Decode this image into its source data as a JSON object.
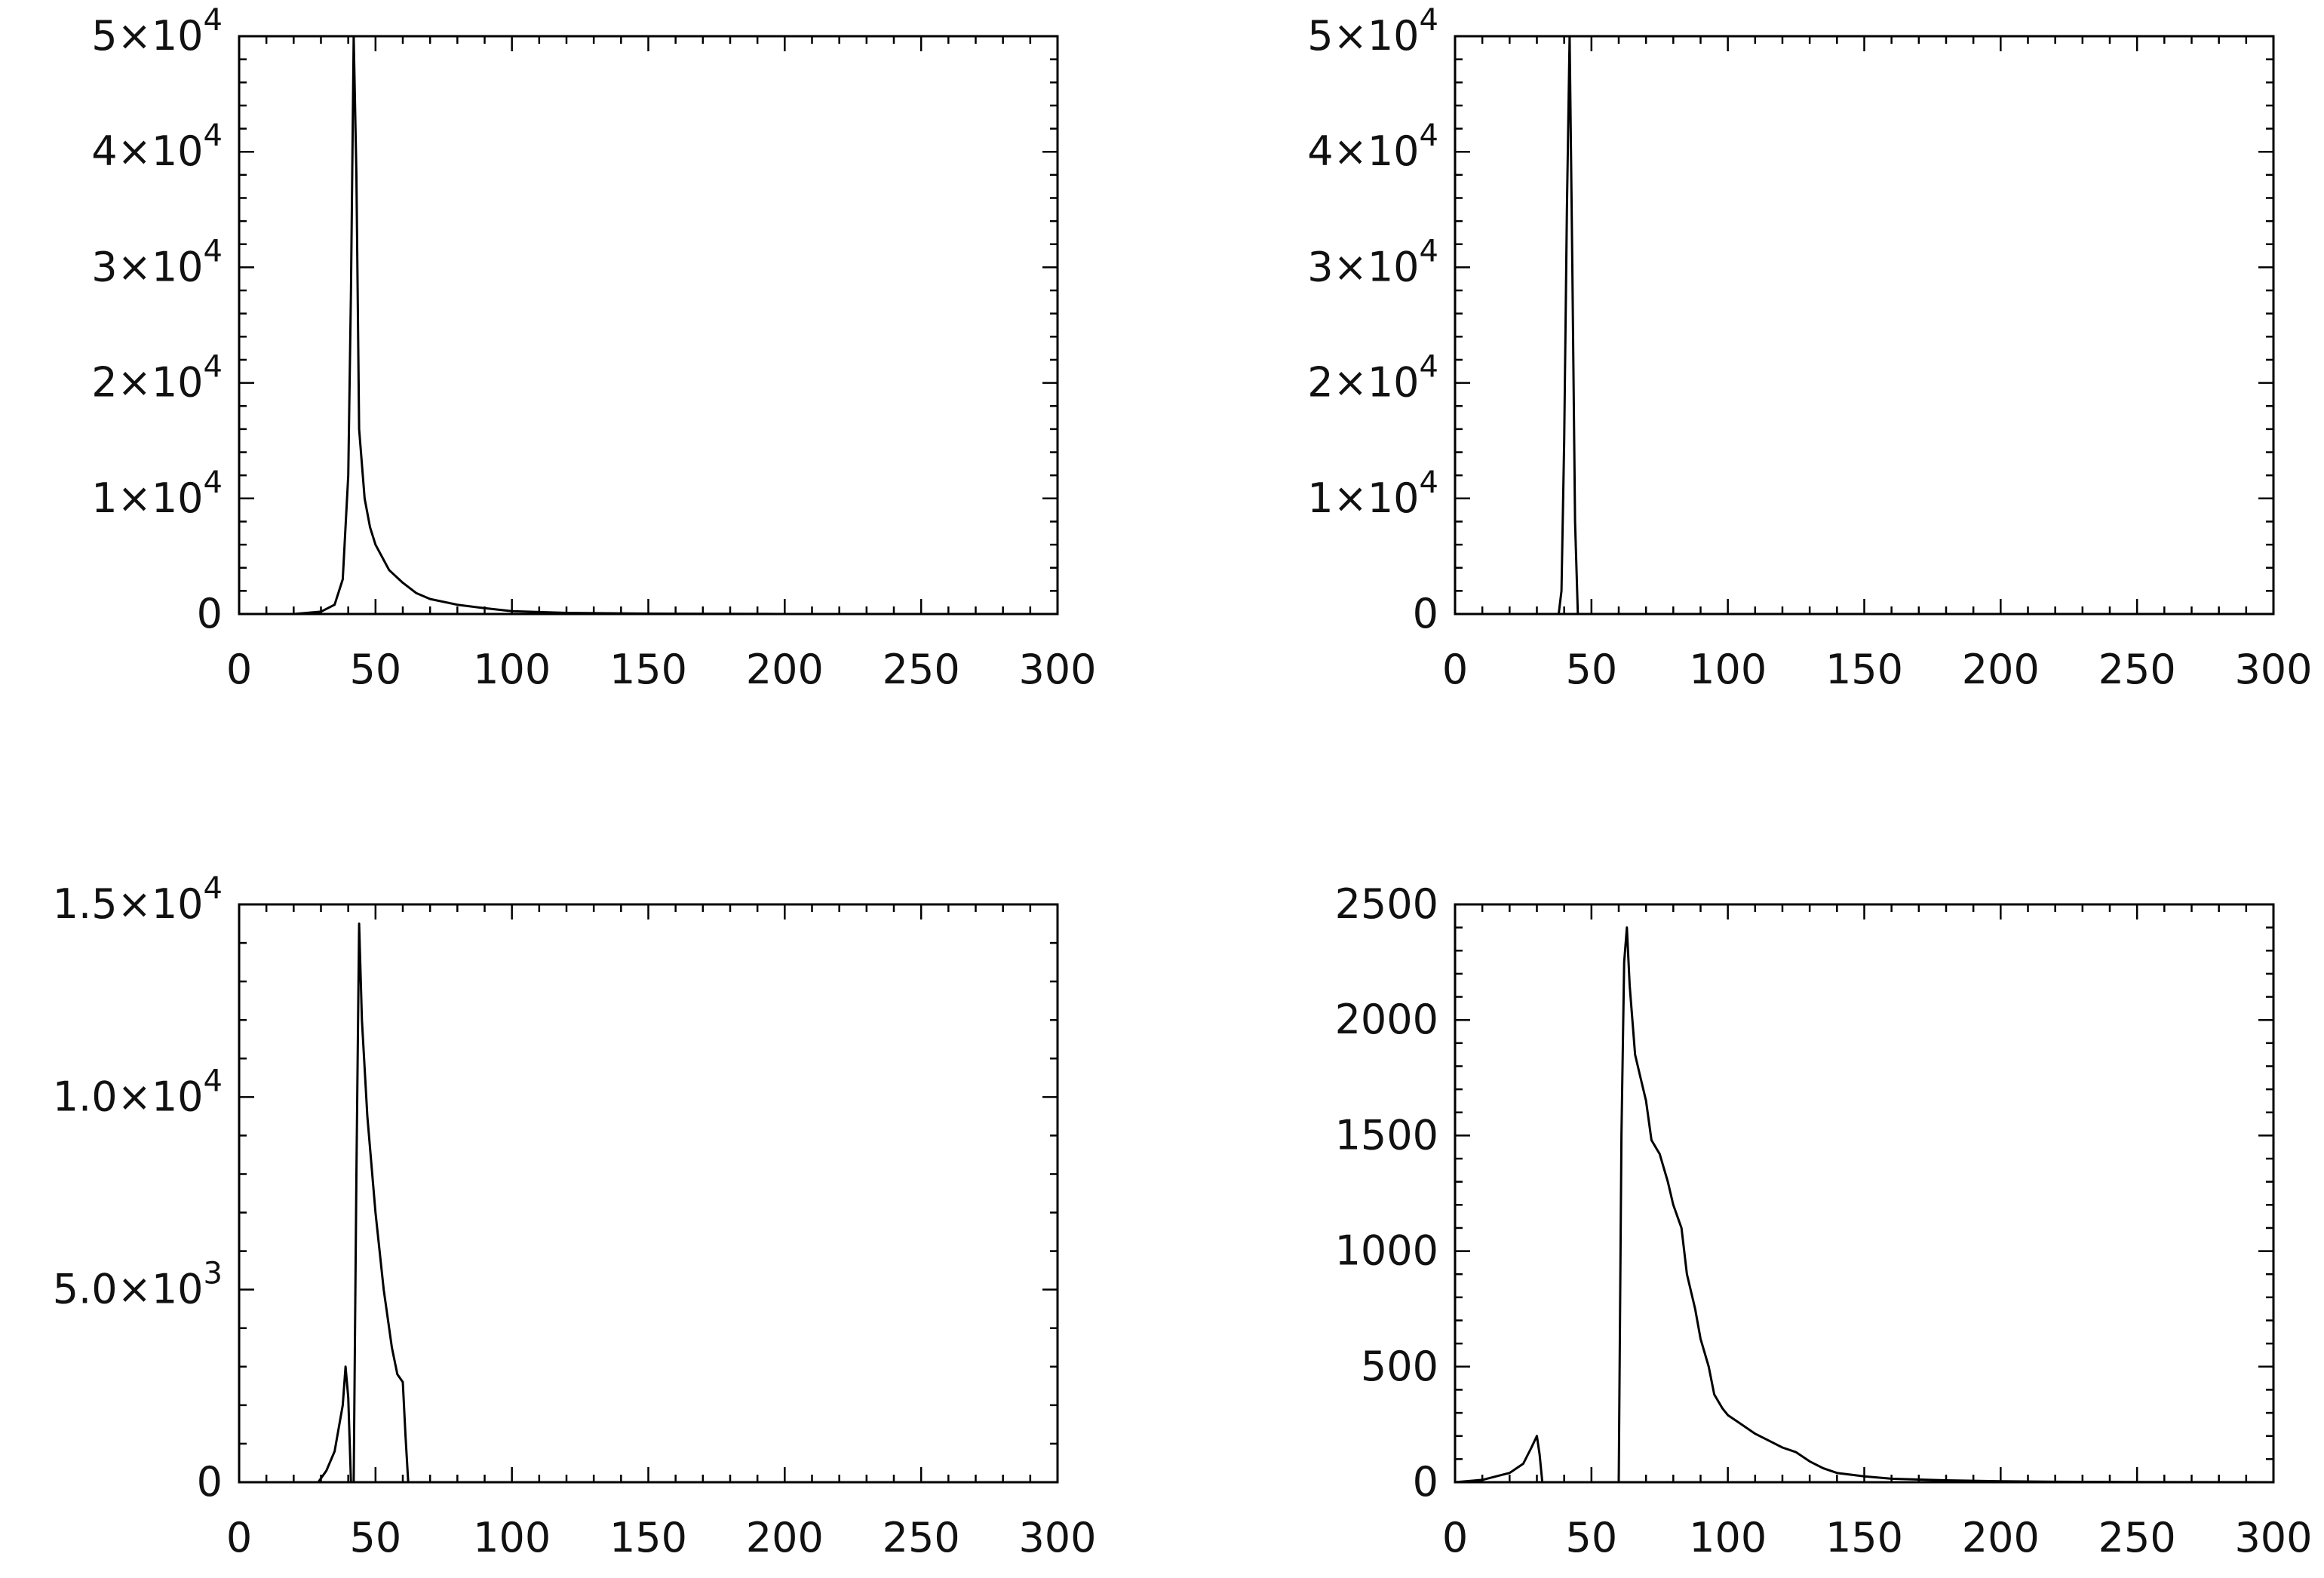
{
  "chart_data": [
    {
      "type": "line",
      "panel": "top-left",
      "xlabel": "",
      "ylabel": "",
      "xlim": [
        0,
        300
      ],
      "ylim": [
        0,
        50000
      ],
      "grid": false,
      "x_ticks": [
        {
          "value": 0,
          "label": "0"
        },
        {
          "value": 50,
          "label": "50"
        },
        {
          "value": 100,
          "label": "100"
        },
        {
          "value": 150,
          "label": "150"
        },
        {
          "value": 200,
          "label": "200"
        },
        {
          "value": 250,
          "label": "250"
        },
        {
          "value": 300,
          "label": "300"
        }
      ],
      "y_ticks": [
        {
          "value": 0,
          "mantissa": "0",
          "exponent": ""
        },
        {
          "value": 10000,
          "mantissa": "1×10",
          "exponent": "4"
        },
        {
          "value": 20000,
          "mantissa": "2×10",
          "exponent": "4"
        },
        {
          "value": 30000,
          "mantissa": "3×10",
          "exponent": "4"
        },
        {
          "value": 40000,
          "mantissa": "4×10",
          "exponent": "4"
        },
        {
          "value": 50000,
          "mantissa": "5×10",
          "exponent": "4"
        }
      ],
      "series": [
        {
          "x": [
            0,
            20,
            30,
            35,
            38,
            40,
            41,
            42,
            43,
            44,
            46,
            48,
            50,
            55,
            60,
            65,
            70,
            80,
            90,
            100,
            120,
            150,
            200,
            300
          ],
          "y": [
            0,
            0,
            200,
            800,
            3000,
            12000,
            28000,
            50000,
            38000,
            16000,
            10000,
            7500,
            6000,
            3800,
            2700,
            1800,
            1300,
            800,
            500,
            250,
            100,
            30,
            0,
            0
          ]
        }
      ]
    },
    {
      "type": "line",
      "panel": "top-right",
      "xlabel": "",
      "ylabel": "",
      "xlim": [
        0,
        300
      ],
      "ylim": [
        0,
        50000
      ],
      "grid": false,
      "x_ticks": [
        {
          "value": 0,
          "label": "0"
        },
        {
          "value": 50,
          "label": "50"
        },
        {
          "value": 100,
          "label": "100"
        },
        {
          "value": 150,
          "label": "150"
        },
        {
          "value": 200,
          "label": "200"
        },
        {
          "value": 250,
          "label": "250"
        },
        {
          "value": 300,
          "label": "300"
        }
      ],
      "y_ticks": [
        {
          "value": 0,
          "mantissa": "0",
          "exponent": ""
        },
        {
          "value": 10000,
          "mantissa": "1×10",
          "exponent": "4"
        },
        {
          "value": 20000,
          "mantissa": "2×10",
          "exponent": "4"
        },
        {
          "value": 30000,
          "mantissa": "3×10",
          "exponent": "4"
        },
        {
          "value": 40000,
          "mantissa": "4×10",
          "exponent": "4"
        },
        {
          "value": 50000,
          "mantissa": "5×10",
          "exponent": "4"
        }
      ],
      "series": [
        {
          "x": [
            0,
            38,
            39,
            40,
            41,
            42,
            43,
            44,
            45,
            300
          ],
          "y": [
            0,
            0,
            2000,
            15000,
            35000,
            50000,
            30000,
            8000,
            0,
            0
          ]
        }
      ]
    },
    {
      "type": "line",
      "panel": "bottom-left",
      "xlabel": "",
      "ylabel": "",
      "xlim": [
        0,
        300
      ],
      "ylim": [
        0,
        15000
      ],
      "grid": false,
      "x_ticks": [
        {
          "value": 0,
          "label": "0"
        },
        {
          "value": 50,
          "label": "50"
        },
        {
          "value": 100,
          "label": "100"
        },
        {
          "value": 150,
          "label": "150"
        },
        {
          "value": 200,
          "label": "200"
        },
        {
          "value": 250,
          "label": "250"
        },
        {
          "value": 300,
          "label": "300"
        }
      ],
      "y_ticks": [
        {
          "value": 0,
          "mantissa": "0",
          "exponent": ""
        },
        {
          "value": 5000,
          "mantissa": "5.0×10",
          "exponent": "3"
        },
        {
          "value": 10000,
          "mantissa": "1.0×10",
          "exponent": "4"
        },
        {
          "value": 15000,
          "mantissa": "1.5×10",
          "exponent": "4"
        }
      ],
      "series": [
        {
          "x": [
            0,
            29,
            32,
            35,
            38,
            39,
            40,
            41,
            42,
            43,
            44,
            45,
            47,
            50,
            53,
            56,
            58,
            60,
            61,
            62,
            300
          ],
          "y": [
            0,
            0,
            300,
            800,
            2000,
            3000,
            2200,
            0,
            0,
            8000,
            14500,
            12000,
            9500,
            7000,
            5000,
            3500,
            2800,
            2600,
            1200,
            0,
            0
          ]
        }
      ]
    },
    {
      "type": "line",
      "panel": "bottom-right",
      "xlabel": "",
      "ylabel": "",
      "xlim": [
        0,
        300
      ],
      "ylim": [
        0,
        2500
      ],
      "grid": false,
      "x_ticks": [
        {
          "value": 0,
          "label": "0"
        },
        {
          "value": 50,
          "label": "50"
        },
        {
          "value": 100,
          "label": "100"
        },
        {
          "value": 150,
          "label": "150"
        },
        {
          "value": 200,
          "label": "200"
        },
        {
          "value": 250,
          "label": "250"
        },
        {
          "value": 300,
          "label": "300"
        }
      ],
      "y_ticks": [
        {
          "value": 0,
          "mantissa": "0",
          "exponent": ""
        },
        {
          "value": 500,
          "mantissa": "500",
          "exponent": ""
        },
        {
          "value": 1000,
          "mantissa": "1000",
          "exponent": ""
        },
        {
          "value": 1500,
          "mantissa": "1500",
          "exponent": ""
        },
        {
          "value": 2000,
          "mantissa": "2000",
          "exponent": ""
        },
        {
          "value": 2500,
          "mantissa": "2500",
          "exponent": ""
        }
      ],
      "series": [
        {
          "x": [
            0,
            10,
            20,
            25,
            28,
            30,
            31,
            32,
            60,
            61,
            62,
            63,
            64,
            66,
            68,
            70,
            72,
            75,
            78,
            80,
            83,
            85,
            88,
            90,
            93,
            95,
            98,
            100,
            105,
            110,
            115,
            120,
            125,
            130,
            135,
            140,
            150,
            160,
            180,
            200,
            220,
            250,
            300
          ],
          "y": [
            0,
            10,
            40,
            80,
            150,
            200,
            120,
            0,
            0,
            1500,
            2250,
            2400,
            2150,
            1850,
            1750,
            1650,
            1480,
            1420,
            1300,
            1200,
            1100,
            900,
            750,
            620,
            500,
            380,
            320,
            290,
            250,
            210,
            180,
            150,
            130,
            90,
            60,
            40,
            25,
            15,
            8,
            4,
            2,
            1,
            0
          ]
        }
      ]
    }
  ]
}
